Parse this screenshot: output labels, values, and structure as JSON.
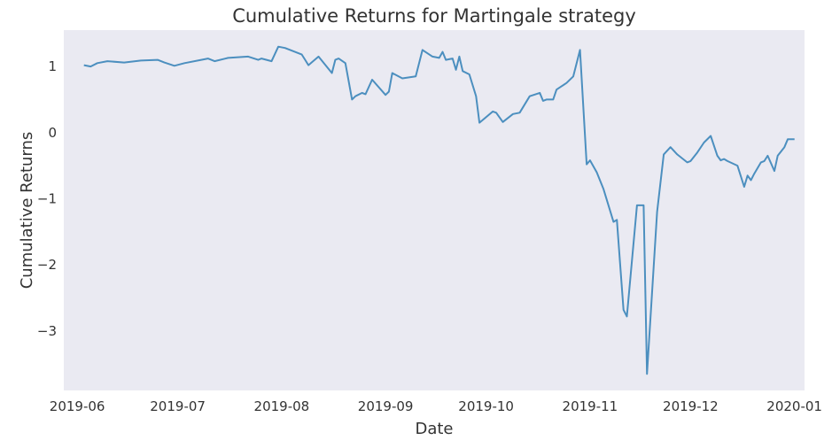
{
  "chart_data": {
    "type": "line",
    "title": "Cumulative Returns for Martingale strategy",
    "xlabel": "Date",
    "ylabel": "Cumulative Returns",
    "grid": false,
    "xlim": [
      "2019-05-28",
      "2020-01-04"
    ],
    "ylim": [
      -3.9,
      1.55
    ],
    "x_ticks": [
      {
        "date": "2019-06-01",
        "label": "2019-06"
      },
      {
        "date": "2019-07-01",
        "label": "2019-07"
      },
      {
        "date": "2019-08-01",
        "label": "2019-08"
      },
      {
        "date": "2019-09-01",
        "label": "2019-09"
      },
      {
        "date": "2019-10-01",
        "label": "2019-10"
      },
      {
        "date": "2019-11-01",
        "label": "2019-11"
      },
      {
        "date": "2019-12-01",
        "label": "2019-12"
      },
      {
        "date": "2020-01-01",
        "label": "2020-01"
      }
    ],
    "y_ticks": [
      {
        "value": 1,
        "label": "1"
      },
      {
        "value": 0,
        "label": "0"
      },
      {
        "value": -1,
        "label": "−1"
      },
      {
        "value": -2,
        "label": "−2"
      },
      {
        "value": -3,
        "label": "−3"
      }
    ],
    "series": [
      {
        "color": "#4c8fbf",
        "x": [
          "2019-06-03",
          "2019-06-05",
          "2019-06-07",
          "2019-06-10",
          "2019-06-15",
          "2019-06-20",
          "2019-06-25",
          "2019-06-27",
          "2019-06-30",
          "2019-07-03",
          "2019-07-08",
          "2019-07-10",
          "2019-07-12",
          "2019-07-16",
          "2019-07-22",
          "2019-07-25",
          "2019-07-26",
          "2019-07-29",
          "2019-07-31",
          "2019-08-02",
          "2019-08-07",
          "2019-08-08",
          "2019-08-09",
          "2019-08-12",
          "2019-08-16",
          "2019-08-17",
          "2019-08-18",
          "2019-08-20",
          "2019-08-22",
          "2019-08-23",
          "2019-08-25",
          "2019-08-26",
          "2019-08-28",
          "2019-09-01",
          "2019-09-02",
          "2019-09-03",
          "2019-09-06",
          "2019-09-10",
          "2019-09-12",
          "2019-09-15",
          "2019-09-17",
          "2019-09-18",
          "2019-09-19",
          "2019-09-21",
          "2019-09-22",
          "2019-09-23",
          "2019-09-24",
          "2019-09-26",
          "2019-09-28",
          "2019-09-29",
          "2019-10-03",
          "2019-10-04",
          "2019-10-06",
          "2019-10-09",
          "2019-10-11",
          "2019-10-14",
          "2019-10-17",
          "2019-10-18",
          "2019-10-19",
          "2019-10-21",
          "2019-10-22",
          "2019-10-25",
          "2019-10-27",
          "2019-10-29",
          "2019-10-31",
          "2019-11-01",
          "2019-11-03",
          "2019-11-05",
          "2019-11-08",
          "2019-11-09",
          "2019-11-11",
          "2019-11-12",
          "2019-11-15",
          "2019-11-17",
          "2019-11-18",
          "2019-11-21",
          "2019-11-23",
          "2019-11-25",
          "2019-11-27",
          "2019-11-30",
          "2019-12-01",
          "2019-12-03",
          "2019-12-05",
          "2019-12-07",
          "2019-12-09",
          "2019-12-10",
          "2019-12-11",
          "2019-12-12",
          "2019-12-15",
          "2019-12-17",
          "2019-12-18",
          "2019-12-19",
          "2019-12-20",
          "2019-12-22",
          "2019-12-23",
          "2019-12-24",
          "2019-12-26",
          "2019-12-27",
          "2019-12-29",
          "2019-12-30",
          "2020-01-01"
        ],
        "y": [
          1.02,
          1.0,
          1.05,
          1.08,
          1.06,
          1.09,
          1.1,
          1.06,
          1.01,
          1.05,
          1.1,
          1.12,
          1.08,
          1.13,
          1.15,
          1.1,
          1.12,
          1.08,
          1.3,
          1.28,
          1.18,
          1.1,
          1.02,
          1.15,
          0.9,
          1.1,
          1.12,
          1.05,
          0.5,
          0.55,
          0.6,
          0.58,
          0.8,
          0.57,
          0.62,
          0.9,
          0.82,
          0.85,
          1.25,
          1.15,
          1.13,
          1.22,
          1.1,
          1.12,
          0.95,
          1.15,
          0.93,
          0.88,
          0.55,
          0.15,
          0.32,
          0.3,
          0.16,
          0.28,
          0.3,
          0.55,
          0.6,
          0.48,
          0.5,
          0.5,
          0.65,
          0.75,
          0.85,
          1.25,
          -0.48,
          -0.42,
          -0.6,
          -0.85,
          -1.35,
          -1.32,
          -2.68,
          -2.78,
          -1.1,
          -1.1,
          -3.65,
          -1.2,
          -0.33,
          -0.22,
          -0.33,
          -0.45,
          -0.43,
          -0.3,
          -0.15,
          -0.05,
          -0.35,
          -0.42,
          -0.4,
          -0.43,
          -0.5,
          -0.82,
          -0.65,
          -0.72,
          -0.62,
          -0.45,
          -0.43,
          -0.35,
          -0.58,
          -0.35,
          -0.22,
          -0.1,
          -0.1
        ]
      }
    ]
  }
}
